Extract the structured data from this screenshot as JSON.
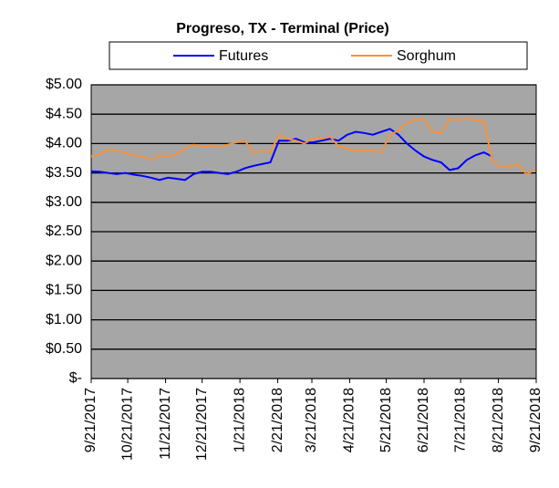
{
  "chart_data": {
    "type": "line",
    "title": "Progreso, TX - Terminal (Price)",
    "x": [
      "9/21/2017",
      "9/28/2017",
      "10/5/2017",
      "10/12/2017",
      "10/19/2017",
      "10/26/2017",
      "11/2/2017",
      "11/9/2017",
      "11/16/2017",
      "11/23/2017",
      "11/30/2017",
      "12/7/2017",
      "12/14/2017",
      "12/21/2017",
      "12/28/2017",
      "1/4/2018",
      "1/11/2018",
      "1/18/2018",
      "1/25/2018",
      "2/1/2018",
      "2/8/2018",
      "2/15/2018",
      "2/22/2018",
      "3/1/2018",
      "3/8/2018",
      "3/15/2018",
      "3/22/2018",
      "3/29/2018",
      "4/5/2018",
      "4/12/2018",
      "4/19/2018",
      "4/26/2018",
      "5/3/2018",
      "5/10/2018",
      "5/17/2018",
      "5/24/2018",
      "5/31/2018",
      "6/7/2018",
      "6/14/2018",
      "6/21/2018",
      "6/28/2018",
      "7/5/2018",
      "7/12/2018",
      "7/19/2018",
      "7/26/2018",
      "8/2/2018",
      "8/9/2018",
      "8/16/2018",
      "8/23/2018",
      "8/30/2018",
      "9/6/2018",
      "9/13/2018",
      "9/20/2018"
    ],
    "series": [
      {
        "name": "Futures",
        "color": "#0000ff",
        "values": [
          3.53,
          3.52,
          3.5,
          3.48,
          3.5,
          3.47,
          3.45,
          3.42,
          3.38,
          3.42,
          3.4,
          3.38,
          3.48,
          3.52,
          3.52,
          3.5,
          3.48,
          3.52,
          3.58,
          3.62,
          3.65,
          3.68,
          4.05,
          4.05,
          4.08,
          4.02,
          4.02,
          4.05,
          4.08,
          4.05,
          4.15,
          4.2,
          4.18,
          4.15,
          4.2,
          4.25,
          4.15,
          4.0,
          3.88,
          3.78,
          3.72,
          3.68,
          3.55,
          3.58,
          3.72,
          3.8,
          3.85,
          3.78,
          null,
          null,
          null,
          null,
          null
        ]
      },
      {
        "name": "Sorghum",
        "color": "#f7923a",
        "values": [
          3.78,
          3.82,
          3.9,
          3.88,
          3.85,
          3.8,
          3.78,
          3.72,
          3.8,
          3.78,
          3.82,
          3.92,
          3.98,
          3.95,
          3.97,
          3.95,
          3.98,
          4.02,
          4.05,
          3.85,
          3.88,
          3.85,
          4.15,
          4.08,
          4.05,
          4.0,
          4.1,
          4.08,
          4.12,
          3.95,
          3.92,
          3.88,
          3.9,
          3.88,
          3.85,
          4.15,
          4.22,
          4.35,
          4.4,
          4.42,
          4.2,
          4.18,
          4.42,
          4.4,
          4.42,
          4.4,
          4.38,
          3.7,
          3.6,
          3.62,
          3.65,
          3.48,
          3.55
        ]
      }
    ],
    "xlim": [
      "9/21/2017",
      "9/21/2018"
    ],
    "xticks": [
      "9/21/2017",
      "10/21/2017",
      "11/21/2017",
      "12/21/2017",
      "1/21/2018",
      "2/21/2018",
      "3/21/2018",
      "4/21/2018",
      "5/21/2018",
      "6/21/2018",
      "7/21/2018",
      "8/21/2018",
      "9/21/2018"
    ],
    "ylim": [
      0,
      5
    ],
    "yticks": [
      {
        "value": 0,
        "label": "$-"
      },
      {
        "value": 0.5,
        "label": "$0.50"
      },
      {
        "value": 1,
        "label": "$1.00"
      },
      {
        "value": 1.5,
        "label": "$1.50"
      },
      {
        "value": 2,
        "label": "$2.00"
      },
      {
        "value": 2.5,
        "label": "$2.50"
      },
      {
        "value": 3,
        "label": "$3.00"
      },
      {
        "value": 3.5,
        "label": "$3.50"
      },
      {
        "value": 4,
        "label": "$4.00"
      },
      {
        "value": 4.5,
        "label": "$4.50"
      },
      {
        "value": 5,
        "label": "$5.00"
      }
    ],
    "grid": true,
    "plot_color": "#a6a6a6"
  }
}
